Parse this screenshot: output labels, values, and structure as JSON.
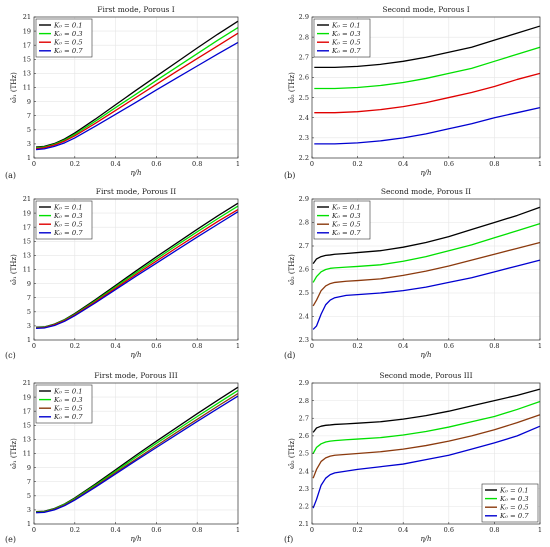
{
  "colors": {
    "K0_0.1": "#000000",
    "K0_0.3": "#00e000",
    "K0_0.5": "#e00000",
    "K0_0.5_brown": "#8b3a0e",
    "K0_0.7": "#0000d0"
  },
  "chart_data": [
    {
      "panel": "(a)",
      "type": "line",
      "title": "First mode, Porous I",
      "xlabel": "η/h",
      "ylabel": "ω̂₁ (THz)",
      "xlim": [
        0,
        1
      ],
      "ylim": [
        1,
        21
      ],
      "xticks": [
        0,
        0.2,
        0.4,
        0.6,
        0.8,
        1
      ],
      "yticks": [
        1,
        3,
        5,
        7,
        9,
        11,
        13,
        15,
        17,
        19,
        21
      ],
      "xtick_labels": [
        "0",
        "0.2",
        "0.4",
        "0.6",
        "0.8",
        "1"
      ],
      "ytick_labels": [
        "1",
        "3",
        "5",
        "7",
        "9",
        "11",
        "13",
        "15",
        "17",
        "19",
        "21"
      ],
      "grid": true,
      "legend_position": "top-left",
      "x": [
        0.01,
        0.05,
        0.1,
        0.15,
        0.2,
        0.3,
        0.4,
        0.5,
        0.6,
        0.7,
        0.8,
        0.9,
        1.0
      ],
      "series": [
        {
          "name": "K₀ = 0.1",
          "color": "#000000",
          "values": [
            2.55,
            2.65,
            3.05,
            3.7,
            4.55,
            6.5,
            8.55,
            10.6,
            12.6,
            14.6,
            16.6,
            18.55,
            20.4
          ]
        },
        {
          "name": "K₀ = 0.3",
          "color": "#00e000",
          "values": [
            2.45,
            2.55,
            2.95,
            3.55,
            4.35,
            6.2,
            8.15,
            10.05,
            12.0,
            13.9,
            15.8,
            17.7,
            19.5
          ]
        },
        {
          "name": "K₀ = 0.5",
          "color": "#e00000",
          "values": [
            2.35,
            2.45,
            2.85,
            3.4,
            4.15,
            5.9,
            7.75,
            9.6,
            11.45,
            13.3,
            15.1,
            16.9,
            18.7
          ]
        },
        {
          "name": "K₀ = 0.7",
          "color": "#0000d0",
          "values": [
            2.2,
            2.3,
            2.65,
            3.15,
            3.85,
            5.5,
            7.2,
            8.9,
            10.65,
            12.35,
            14.05,
            15.75,
            17.4
          ]
        }
      ]
    },
    {
      "panel": "(b)",
      "type": "line",
      "title": "Second mode, Porous I",
      "xlabel": "η/h",
      "ylabel": "ω̂₂ (THz)",
      "xlim": [
        0,
        1
      ],
      "ylim": [
        2.2,
        2.9
      ],
      "xticks": [
        0,
        0.2,
        0.4,
        0.6,
        0.8,
        1
      ],
      "yticks": [
        2.2,
        2.3,
        2.4,
        2.5,
        2.6,
        2.7,
        2.8,
        2.9
      ],
      "xtick_labels": [
        "0",
        "0.2",
        "0.4",
        "0.6",
        "0.8",
        "1"
      ],
      "ytick_labels": [
        "2.2",
        "2.3",
        "2.4",
        "2.5",
        "2.6",
        "2.7",
        "2.8",
        "2.9"
      ],
      "grid": true,
      "legend_position": "top-left",
      "x": [
        0.01,
        0.1,
        0.2,
        0.3,
        0.4,
        0.5,
        0.6,
        0.7,
        0.8,
        0.9,
        1.0
      ],
      "series": [
        {
          "name": "K₀ = 0.1",
          "color": "#000000",
          "values": [
            2.65,
            2.65,
            2.655,
            2.665,
            2.68,
            2.7,
            2.725,
            2.75,
            2.785,
            2.82,
            2.855
          ]
        },
        {
          "name": "K₀ = 0.3",
          "color": "#00e000",
          "values": [
            2.545,
            2.545,
            2.55,
            2.56,
            2.575,
            2.595,
            2.62,
            2.645,
            2.68,
            2.715,
            2.75
          ]
        },
        {
          "name": "K₀ = 0.5",
          "color": "#e00000",
          "values": [
            2.425,
            2.425,
            2.43,
            2.44,
            2.455,
            2.475,
            2.5,
            2.525,
            2.555,
            2.59,
            2.62
          ]
        },
        {
          "name": "K₀ = 0.7",
          "color": "#0000d0",
          "values": [
            2.27,
            2.27,
            2.275,
            2.285,
            2.3,
            2.32,
            2.345,
            2.37,
            2.4,
            2.425,
            2.45
          ]
        }
      ]
    },
    {
      "panel": "(c)",
      "type": "line",
      "title": "First mode, Porous II",
      "xlabel": "η/h",
      "ylabel": "ω̂₁ (THz)",
      "xlim": [
        0,
        1
      ],
      "ylim": [
        1,
        21
      ],
      "xticks": [
        0,
        0.2,
        0.4,
        0.6,
        0.8,
        1
      ],
      "yticks": [
        1,
        3,
        5,
        7,
        9,
        11,
        13,
        15,
        17,
        19,
        21
      ],
      "xtick_labels": [
        "0",
        "0.2",
        "0.4",
        "0.6",
        "0.8",
        "1"
      ],
      "ytick_labels": [
        "1",
        "3",
        "5",
        "7",
        "9",
        "11",
        "13",
        "15",
        "17",
        "19",
        "21"
      ],
      "grid": true,
      "legend_position": "top-left",
      "x": [
        0.01,
        0.05,
        0.1,
        0.15,
        0.2,
        0.3,
        0.4,
        0.5,
        0.6,
        0.7,
        0.8,
        0.9,
        1.0
      ],
      "series": [
        {
          "name": "K₀ = 0.1",
          "color": "#000000",
          "values": [
            2.8,
            2.85,
            3.25,
            3.9,
            4.75,
            6.7,
            8.75,
            10.8,
            12.8,
            14.75,
            16.7,
            18.6,
            20.4
          ]
        },
        {
          "name": "K₀ = 0.3",
          "color": "#00e000",
          "values": [
            2.75,
            2.8,
            3.2,
            3.85,
            4.65,
            6.55,
            8.55,
            10.55,
            12.5,
            14.45,
            16.35,
            18.2,
            20.0
          ]
        },
        {
          "name": "K₀ = 0.5",
          "color": "#e00000",
          "values": [
            2.7,
            2.75,
            3.15,
            3.75,
            4.55,
            6.4,
            8.35,
            10.3,
            12.2,
            14.1,
            15.95,
            17.8,
            19.5
          ]
        },
        {
          "name": "K₀ = 0.7",
          "color": "#0000d0",
          "values": [
            2.65,
            2.7,
            3.05,
            3.65,
            4.45,
            6.25,
            8.15,
            10.05,
            11.9,
            13.75,
            15.6,
            17.4,
            19.2
          ]
        }
      ]
    },
    {
      "panel": "(d)",
      "type": "line",
      "title": "Second mode, Porous II",
      "xlabel": "η/h",
      "ylabel": "ω̂₂ (THz)",
      "xlim": [
        0,
        1
      ],
      "ylim": [
        2.3,
        2.9
      ],
      "xticks": [
        0,
        0.2,
        0.4,
        0.6,
        0.8,
        1
      ],
      "yticks": [
        2.3,
        2.4,
        2.5,
        2.6,
        2.7,
        2.8,
        2.9
      ],
      "xtick_labels": [
        "0",
        "0.2",
        "0.4",
        "0.6",
        "0.8",
        "1"
      ],
      "ytick_labels": [
        "2.3",
        "2.4",
        "2.5",
        "2.6",
        "2.7",
        "2.8",
        "2.9"
      ],
      "grid": true,
      "legend_position": "top-left",
      "x": [
        0.005,
        0.02,
        0.04,
        0.06,
        0.08,
        0.1,
        0.15,
        0.2,
        0.3,
        0.4,
        0.5,
        0.6,
        0.7,
        0.8,
        0.9,
        1.0
      ],
      "series": [
        {
          "name": "K₀ = 0.1",
          "color": "#000000",
          "values": [
            2.625,
            2.645,
            2.655,
            2.66,
            2.662,
            2.665,
            2.668,
            2.672,
            2.68,
            2.695,
            2.715,
            2.74,
            2.77,
            2.8,
            2.83,
            2.865
          ]
        },
        {
          "name": "K₀ = 0.3",
          "color": "#00e000",
          "values": [
            2.545,
            2.57,
            2.59,
            2.6,
            2.605,
            2.607,
            2.61,
            2.613,
            2.62,
            2.635,
            2.655,
            2.68,
            2.705,
            2.735,
            2.765,
            2.795
          ]
        },
        {
          "name": "K₀ = 0.5",
          "color": "#8b3a0e",
          "values": [
            2.445,
            2.47,
            2.51,
            2.53,
            2.54,
            2.545,
            2.55,
            2.553,
            2.56,
            2.575,
            2.593,
            2.615,
            2.64,
            2.665,
            2.69,
            2.715
          ]
        },
        {
          "name": "K₀ = 0.7",
          "color": "#0000d0",
          "values": [
            2.345,
            2.36,
            2.41,
            2.45,
            2.47,
            2.48,
            2.49,
            2.493,
            2.5,
            2.51,
            2.525,
            2.545,
            2.565,
            2.59,
            2.615,
            2.64
          ]
        }
      ]
    },
    {
      "panel": "(e)",
      "type": "line",
      "title": "First mode, Porous III",
      "xlabel": "η/h",
      "ylabel": "ω̂₁ (THz)",
      "xlim": [
        0,
        1
      ],
      "ylim": [
        1,
        21
      ],
      "xticks": [
        0,
        0.2,
        0.4,
        0.6,
        0.8,
        1
      ],
      "yticks": [
        1,
        3,
        5,
        7,
        9,
        11,
        13,
        15,
        17,
        19,
        21
      ],
      "xtick_labels": [
        "0",
        "0.2",
        "0.4",
        "0.6",
        "0.8",
        "1"
      ],
      "ytick_labels": [
        "1",
        "3",
        "5",
        "7",
        "9",
        "11",
        "13",
        "15",
        "17",
        "19",
        "21"
      ],
      "grid": true,
      "legend_position": "top-left",
      "x": [
        0.01,
        0.05,
        0.1,
        0.15,
        0.2,
        0.3,
        0.4,
        0.5,
        0.6,
        0.7,
        0.8,
        0.9,
        1.0
      ],
      "series": [
        {
          "name": "K₀ = 0.1",
          "color": "#000000",
          "values": [
            2.75,
            2.8,
            3.2,
            3.85,
            4.7,
            6.65,
            8.7,
            10.75,
            12.75,
            14.7,
            16.65,
            18.55,
            20.4
          ]
        },
        {
          "name": "K₀ = 0.3",
          "color": "#00e000",
          "values": [
            2.7,
            2.75,
            3.15,
            3.8,
            4.6,
            6.5,
            8.5,
            10.5,
            12.45,
            14.35,
            16.25,
            18.1,
            19.95
          ]
        },
        {
          "name": "K₀ = 0.5",
          "color": "#8b3a0e",
          "values": [
            2.65,
            2.7,
            3.1,
            3.7,
            4.5,
            6.35,
            8.3,
            10.2,
            12.1,
            14.0,
            15.85,
            17.7,
            19.5
          ]
        },
        {
          "name": "K₀ = 0.7",
          "color": "#0000d0",
          "values": [
            2.6,
            2.65,
            3.0,
            3.6,
            4.4,
            6.2,
            8.1,
            10.0,
            11.85,
            13.7,
            15.55,
            17.35,
            19.15
          ]
        }
      ]
    },
    {
      "panel": "(f)",
      "type": "line",
      "title": "Second mode, Porous III",
      "xlabel": "η/h",
      "ylabel": "ω̂₂ (THz)",
      "xlim": [
        0,
        1
      ],
      "ylim": [
        2.1,
        2.9
      ],
      "xticks": [
        0,
        0.2,
        0.4,
        0.6,
        0.8,
        1
      ],
      "yticks": [
        2.1,
        2.2,
        2.3,
        2.4,
        2.5,
        2.6,
        2.7,
        2.8,
        2.9
      ],
      "xtick_labels": [
        "0",
        "0.2",
        "0.4",
        "0.6",
        "0.8",
        "1"
      ],
      "ytick_labels": [
        "2.1",
        "2.2",
        "2.3",
        "2.4",
        "2.5",
        "2.6",
        "2.7",
        "2.8",
        "2.9"
      ],
      "grid": true,
      "legend_position": "bottom-right",
      "x": [
        0.005,
        0.02,
        0.04,
        0.06,
        0.08,
        0.1,
        0.15,
        0.2,
        0.3,
        0.4,
        0.5,
        0.6,
        0.7,
        0.8,
        0.9,
        1.0
      ],
      "series": [
        {
          "name": "K₀ = 0.1",
          "color": "#000000",
          "values": [
            2.62,
            2.645,
            2.655,
            2.66,
            2.662,
            2.665,
            2.668,
            2.672,
            2.68,
            2.695,
            2.715,
            2.74,
            2.77,
            2.8,
            2.83,
            2.865
          ]
        },
        {
          "name": "K₀ = 0.3",
          "color": "#00e000",
          "values": [
            2.5,
            2.535,
            2.555,
            2.565,
            2.57,
            2.573,
            2.578,
            2.582,
            2.59,
            2.605,
            2.625,
            2.65,
            2.68,
            2.71,
            2.75,
            2.795
          ]
        },
        {
          "name": "K₀ = 0.5",
          "color": "#8b3a0e",
          "values": [
            2.36,
            2.41,
            2.455,
            2.475,
            2.485,
            2.49,
            2.495,
            2.5,
            2.51,
            2.525,
            2.545,
            2.57,
            2.6,
            2.635,
            2.675,
            2.72
          ]
        },
        {
          "name": "K₀ = 0.7",
          "color": "#0000d0",
          "values": [
            2.19,
            2.24,
            2.32,
            2.36,
            2.38,
            2.39,
            2.4,
            2.41,
            2.425,
            2.44,
            2.465,
            2.49,
            2.525,
            2.56,
            2.6,
            2.655
          ]
        }
      ]
    }
  ]
}
